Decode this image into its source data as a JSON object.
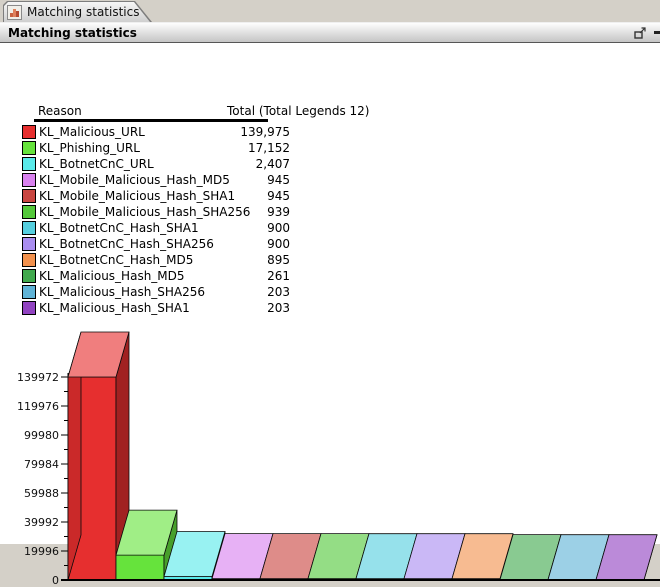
{
  "tab": {
    "label": "Matching statistics",
    "icon": "statistics-icon"
  },
  "window": {
    "title": "Matching statistics",
    "buttons": {
      "restore": "restore-window-icon",
      "minimize": "minimize-window-icon"
    }
  },
  "legend": {
    "reason_header": "Reason",
    "total_header": "Total (Total Legends 12)",
    "rows": [
      {
        "label": "KL_Malicious_URL",
        "total": "139,975",
        "color": "#e62f2f"
      },
      {
        "label": "KL_Phishing_URL",
        "total": "17,152",
        "color": "#66e33c"
      },
      {
        "label": "KL_BotnetCnC_URL",
        "total": "2,407",
        "color": "#59eaea"
      },
      {
        "label": "KL_Mobile_Malicious_Hash_MD5",
        "total": "945",
        "color": "#d981ef"
      },
      {
        "label": "KL_Mobile_Malicious_Hash_SHA1",
        "total": "945",
        "color": "#c94641"
      },
      {
        "label": "KL_Mobile_Malicious_Hash_SHA256",
        "total": "939",
        "color": "#53c83a"
      },
      {
        "label": "KL_BotnetCnC_Hash_SHA1",
        "total": "900",
        "color": "#55cfdf"
      },
      {
        "label": "KL_BotnetCnC_Hash_SHA256",
        "total": "900",
        "color": "#a98df0"
      },
      {
        "label": "KL_BotnetCnC_Hash_MD5",
        "total": "895",
        "color": "#f2914d"
      },
      {
        "label": "KL_Malicious_Hash_MD5",
        "total": "261",
        "color": "#41a94d"
      },
      {
        "label": "KL_Malicious_Hash_SHA256",
        "total": "203",
        "color": "#5fb3d7"
      },
      {
        "label": "KL_Malicious_Hash_SHA1",
        "total": "203",
        "color": "#9143c1"
      }
    ]
  },
  "chart_data": {
    "type": "bar",
    "style": "3d-bars",
    "title": "",
    "xlabel": "",
    "ylabel": "",
    "categories": [
      "KL_Malicious_URL",
      "KL_Phishing_URL",
      "KL_BotnetCnC_URL",
      "KL_Mobile_Malicious_Hash_MD5",
      "KL_Mobile_Malicious_Hash_SHA1",
      "KL_Mobile_Malicious_Hash_SHA256",
      "KL_BotnetCnC_Hash_SHA1",
      "KL_BotnetCnC_Hash_SHA256",
      "KL_BotnetCnC_Hash_MD5",
      "KL_Malicious_Hash_MD5",
      "KL_Malicious_Hash_SHA256",
      "KL_Malicious_Hash_SHA1"
    ],
    "values": [
      139975,
      17152,
      2407,
      945,
      945,
      939,
      900,
      900,
      895,
      261,
      203,
      203
    ],
    "colors": [
      "#e62f2f",
      "#66e33c",
      "#59eaea",
      "#d981ef",
      "#c94641",
      "#53c83a",
      "#55cfdf",
      "#a98df0",
      "#f2914d",
      "#41a94d",
      "#5fb3d7",
      "#9143c1"
    ],
    "ylim": [
      0,
      139972
    ],
    "yticks": [
      0,
      19996,
      39992,
      59988,
      79984,
      99980,
      119976,
      139972
    ],
    "minor_ticks_between_majors": 1,
    "grid": false,
    "legend_position": "table-above-chart",
    "x_tick_labels": "none"
  }
}
